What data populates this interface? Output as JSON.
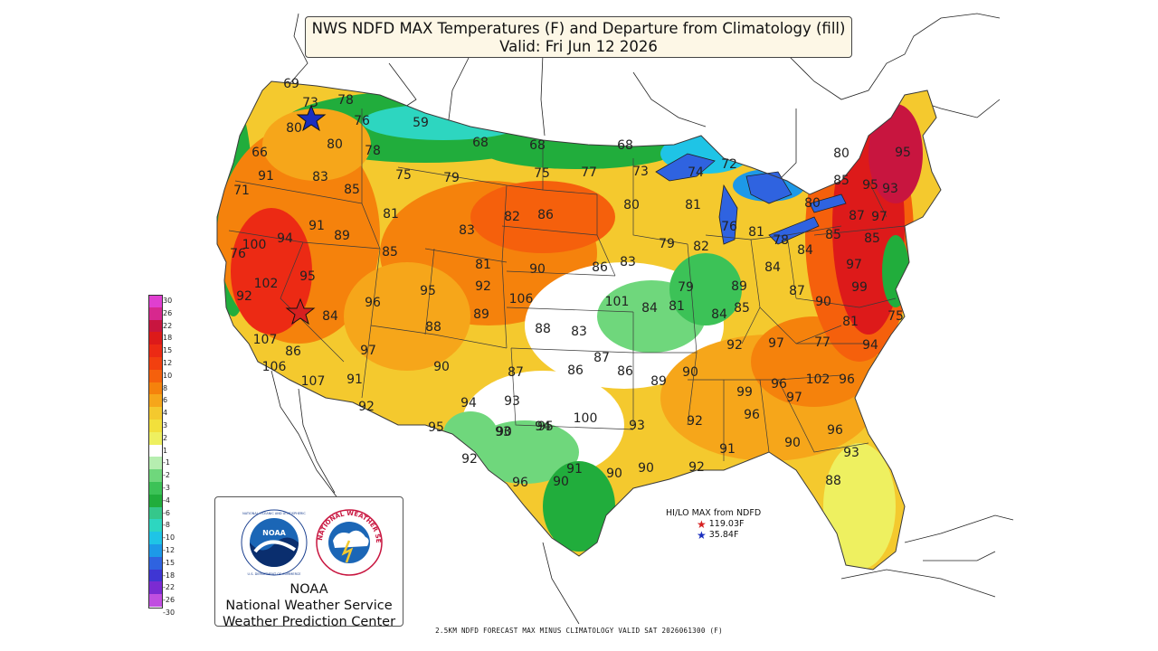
{
  "title": {
    "line1": "NWS NDFD MAX Temperatures (F) and Departure from Climatology (fill)",
    "line2": "Valid: Fri Jun 12 2026"
  },
  "legend": {
    "ticks": [
      "30",
      "26",
      "22",
      "18",
      "15",
      "12",
      "10",
      "8",
      "6",
      "4",
      "3",
      "2",
      "1",
      "-1",
      "-2",
      "-3",
      "-4",
      "-6",
      "-8",
      "-10",
      "-12",
      "-15",
      "-18",
      "-22",
      "-26",
      "-30"
    ],
    "colors": [
      "#e03fd0",
      "#d7288e",
      "#c8153f",
      "#dd1a1a",
      "#ec2a14",
      "#f2400f",
      "#f5600c",
      "#f5820c",
      "#f6a61a",
      "#f4c92e",
      "#f2e03b",
      "#eef060",
      "#ffffff",
      "#b6eeb0",
      "#6fd77c",
      "#3cc257",
      "#21ad3c",
      "#35c78b",
      "#2dd6c0",
      "#1fc4e6",
      "#1d99e8",
      "#2f63e0",
      "#3f36d3",
      "#7b2bd2",
      "#c04fe0"
    ]
  },
  "temperatures": [
    "69",
    "73",
    "78",
    "80",
    "76",
    "59",
    "68",
    "68",
    "68",
    "66",
    "80",
    "78",
    "91",
    "83",
    "85",
    "75",
    "79",
    "75",
    "77",
    "73",
    "74",
    "72",
    "71",
    "81",
    "82",
    "86",
    "80",
    "81",
    "100",
    "94",
    "91",
    "89",
    "83",
    "85",
    "79",
    "82",
    "76",
    "81",
    "78",
    "80",
    "85",
    "87",
    "95",
    "93",
    "95",
    "80",
    "85",
    "97",
    "76",
    "85",
    "84",
    "90",
    "86",
    "83",
    "79",
    "84",
    "102",
    "92",
    "95",
    "90",
    "89",
    "81",
    "84",
    "81",
    "84",
    "85",
    "87",
    "97",
    "99",
    "95",
    "92",
    "106",
    "84",
    "96",
    "89",
    "88",
    "88",
    "83",
    "101",
    "81",
    "75",
    "107",
    "86",
    "97",
    "90",
    "87",
    "86",
    "87",
    "86",
    "89",
    "90",
    "92",
    "97",
    "77",
    "106",
    "107",
    "91",
    "93",
    "93",
    "95",
    "99",
    "96",
    "97",
    "102",
    "96",
    "94",
    "92",
    "94",
    "94",
    "100",
    "93",
    "92",
    "96",
    "95",
    "90",
    "90",
    "96",
    "93",
    "92",
    "91",
    "91",
    "90",
    "96",
    "90",
    "90",
    "92",
    "88"
  ],
  "hilo": {
    "title": "HI/LO MAX from NDFD",
    "hi": "119.03F",
    "lo": "35.84F"
  },
  "logo": {
    "line1": "NOAA",
    "line2": "National Weather Service",
    "line3": "Weather Prediction Center",
    "noaa_badge": "NOAA",
    "nws_ring_text": "NATIONAL WEATHER SERVICE",
    "noaa_ring_text": "NATIONAL OCEANIC AND ATMOSPHERIC ADMINISTRATION · U.S. DEPARTMENT OF COMMERCE"
  },
  "footer": "2.5KM NDFD FORECAST MAX MINUS CLIMATOLOGY VALID SAT 2026061300 (F)",
  "colors": {
    "title_bg": "#fdf7e6",
    "hi_star": "#d62020",
    "lo_star": "#1a2fbf",
    "state_lines": "#3a3a3a"
  }
}
